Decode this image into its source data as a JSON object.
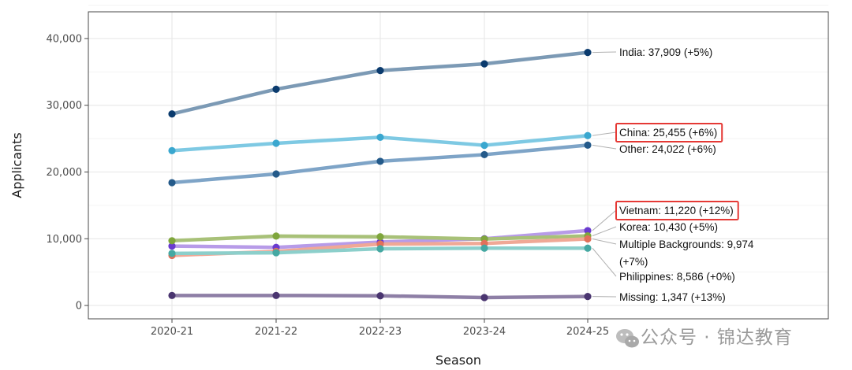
{
  "chart_data": {
    "type": "line",
    "xlabel": "Season",
    "ylabel": "Applicants",
    "categories": [
      "2020-21",
      "2021-22",
      "2022-23",
      "2023-24",
      "2024-25"
    ],
    "ylim": [
      -2000,
      44000
    ],
    "y_ticks": [
      0,
      10000,
      20000,
      30000,
      40000
    ],
    "y_tick_labels": [
      "0",
      "10,000",
      "20,000",
      "30,000",
      "40,000"
    ],
    "grid": true,
    "legend": "none (direct end labels)",
    "series": [
      {
        "name": "India",
        "color": "#7c9ab5",
        "point_color": "#0b3b6e",
        "values": [
          28700,
          32400,
          35200,
          36200,
          37909
        ],
        "label": "India: 37,909 (+5%)",
        "highlight": false
      },
      {
        "name": "China",
        "color": "#7ec9e3",
        "point_color": "#3aa7cf",
        "values": [
          23200,
          24300,
          25200,
          24000,
          25455
        ],
        "label": "China: 25,455 (+6%)",
        "highlight": true
      },
      {
        "name": "Other",
        "color": "#7ea4c7",
        "point_color": "#245a8a",
        "values": [
          18400,
          19700,
          21600,
          22600,
          24022
        ],
        "label": "Other: 24,022 (+6%)",
        "highlight": false
      },
      {
        "name": "Vietnam",
        "color": "#b79be8",
        "point_color": "#6a3bcf",
        "values": [
          8900,
          8700,
          9500,
          10000,
          11220
        ],
        "label": "Vietnam: 11,220 (+12%)",
        "highlight": true
      },
      {
        "name": "Korea",
        "color": "#a8c178",
        "point_color": "#7fa63c",
        "values": [
          9700,
          10400,
          10300,
          9950,
          10430
        ],
        "label": "Korea: 10,430 (+5%)",
        "highlight": false
      },
      {
        "name": "Multiple Backgrounds",
        "color": "#f0a896",
        "point_color": "#e2705a",
        "values": [
          7500,
          8100,
          9200,
          9300,
          9974
        ],
        "label": "Multiple Backgrounds: 9,974",
        "label_line2": "(+7%)",
        "highlight": false
      },
      {
        "name": "Philippines",
        "color": "#8ccfcb",
        "point_color": "#45a8a2",
        "values": [
          7800,
          7900,
          8500,
          8586,
          8586
        ],
        "label": "Philippines: 8,586 (+0%)",
        "highlight": false
      },
      {
        "name": "Missing",
        "color": "#8e7fa6",
        "point_color": "#4a3570",
        "values": [
          1500,
          1500,
          1450,
          1190,
          1347
        ],
        "label": "Missing: 1,347 (+13%)",
        "highlight": false
      }
    ]
  },
  "watermark": {
    "text": "公众号 · 锦达教育",
    "icon": "wechat-icon"
  }
}
